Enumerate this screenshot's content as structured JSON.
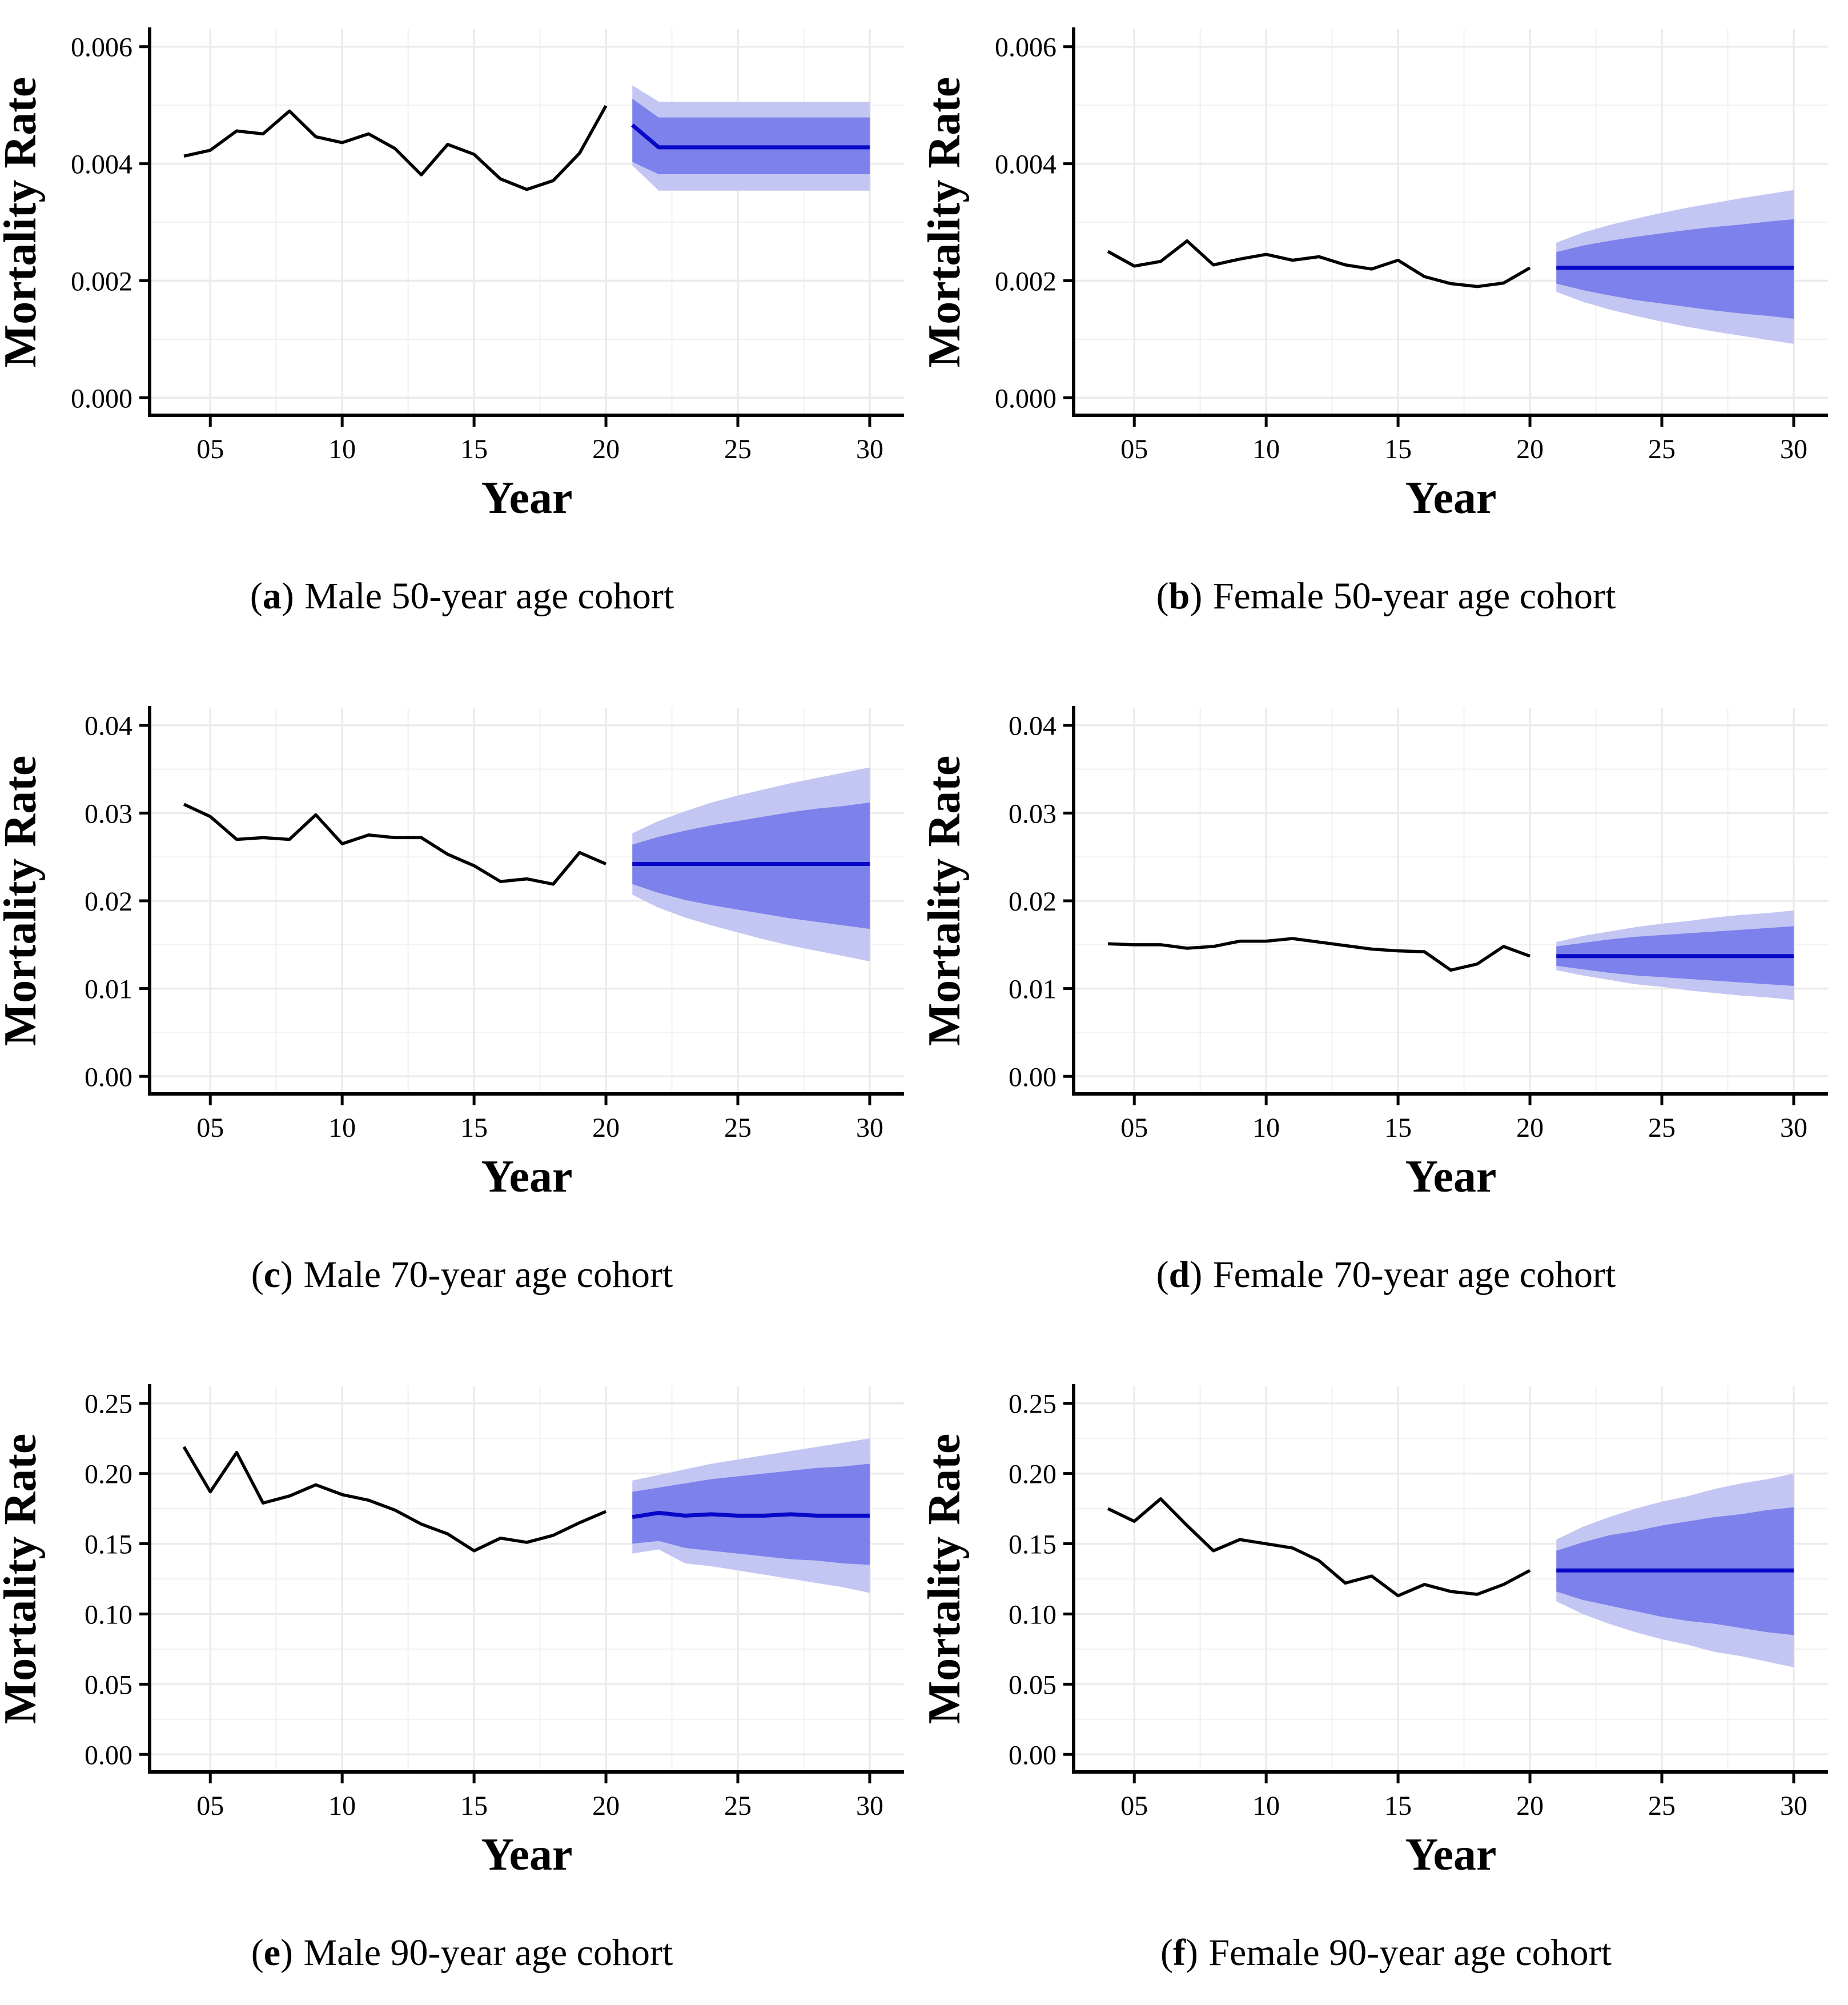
{
  "styles": {
    "background": "#ffffff",
    "historical_line": "#000000",
    "forecast_line": "#0808c8",
    "inner_band": "#7c81eb",
    "outer_band": "#c3c6f3",
    "grid_major": "#ebebeb",
    "grid_minor": "#f2f2f2",
    "axis_color": "#000000"
  },
  "caption_format": {
    "open": "(",
    "close": ")"
  },
  "axis": {
    "x_label": "Year",
    "y_label": "Mortality Rate",
    "x_tick_labels": [
      "05",
      "10",
      "15",
      "20",
      "25",
      "30"
    ],
    "x_tick_years": [
      5,
      10,
      15,
      20,
      25,
      30
    ],
    "x_minor_years": [
      7.5,
      12.5,
      17.5,
      22.5,
      27.5
    ],
    "x_range": [
      2.7,
      31.3
    ],
    "grid": true,
    "legend": "none"
  },
  "chart_data": [
    {
      "type": "line",
      "id": "a",
      "caption_letter": "a",
      "caption_text": "Male 50-year age cohort",
      "xlabel": "Year",
      "ylabel": "Mortality Rate",
      "y_min": -0.0003,
      "y_max": 0.0063,
      "y_tick_values": [
        0.0,
        0.002,
        0.004,
        0.006
      ],
      "y_tick_labels": [
        "0.000",
        "0.002",
        "0.004",
        "0.006"
      ],
      "y_minor_values": [
        0.001,
        0.003,
        0.005
      ],
      "hist_years": [
        4,
        5,
        6,
        7,
        8,
        9,
        10,
        11,
        12,
        13,
        14,
        15,
        16,
        17,
        18,
        19,
        20
      ],
      "hist": [
        0.00413,
        0.00423,
        0.00456,
        0.00451,
        0.0049,
        0.00446,
        0.00436,
        0.00451,
        0.00426,
        0.00381,
        0.00433,
        0.00416,
        0.00374,
        0.00356,
        0.00371,
        0.00418,
        0.00499
      ],
      "forecast_years": [
        21,
        22,
        23,
        24,
        25,
        26,
        27,
        28,
        29,
        30
      ],
      "forecast_median": [
        0.00466,
        0.00428,
        0.00428,
        0.00428,
        0.00428,
        0.00428,
        0.00428,
        0.00428,
        0.00428,
        0.00428
      ],
      "inner_upper": [
        0.00511,
        0.00479,
        0.00479,
        0.00479,
        0.00479,
        0.00479,
        0.00479,
        0.00479,
        0.00479,
        0.00479
      ],
      "inner_lower": [
        0.00403,
        0.00382,
        0.00382,
        0.00382,
        0.00382,
        0.00382,
        0.00382,
        0.00382,
        0.00382,
        0.00382
      ],
      "outer_upper": [
        0.00534,
        0.00506,
        0.00506,
        0.00506,
        0.00506,
        0.00506,
        0.00506,
        0.00506,
        0.00506,
        0.00506
      ],
      "outer_lower": [
        0.00397,
        0.00354,
        0.00354,
        0.00354,
        0.00354,
        0.00354,
        0.00354,
        0.00354,
        0.00354,
        0.00354
      ]
    },
    {
      "type": "line",
      "id": "b",
      "caption_letter": "b",
      "caption_text": "Female 50-year age cohort",
      "xlabel": "Year",
      "ylabel": "Mortality Rate",
      "y_min": -0.0003,
      "y_max": 0.0063,
      "y_tick_values": [
        0.0,
        0.002,
        0.004,
        0.006
      ],
      "y_tick_labels": [
        "0.000",
        "0.002",
        "0.004",
        "0.006"
      ],
      "y_minor_values": [
        0.001,
        0.003,
        0.005
      ],
      "hist_years": [
        4,
        5,
        6,
        7,
        8,
        9,
        10,
        11,
        12,
        13,
        14,
        15,
        16,
        17,
        18,
        19,
        20
      ],
      "hist": [
        0.0025,
        0.00225,
        0.00233,
        0.00268,
        0.00227,
        0.00237,
        0.00245,
        0.00235,
        0.00241,
        0.00227,
        0.0022,
        0.00235,
        0.00207,
        0.00195,
        0.0019,
        0.00196,
        0.00222
      ],
      "forecast_years": [
        21,
        22,
        23,
        24,
        25,
        26,
        27,
        28,
        29,
        30
      ],
      "forecast_median": [
        0.00222,
        0.00222,
        0.00222,
        0.00222,
        0.00222,
        0.00222,
        0.00222,
        0.00222,
        0.00222,
        0.00222
      ],
      "inner_upper": [
        0.00249,
        0.0026,
        0.00268,
        0.00275,
        0.00281,
        0.00287,
        0.00292,
        0.00296,
        0.00301,
        0.00305
      ],
      "inner_lower": [
        0.00195,
        0.00184,
        0.00175,
        0.00167,
        0.00161,
        0.00155,
        0.00149,
        0.00144,
        0.0014,
        0.00135
      ],
      "outer_upper": [
        0.00265,
        0.00282,
        0.00295,
        0.00306,
        0.00316,
        0.00325,
        0.00333,
        0.00341,
        0.00348,
        0.00355
      ],
      "outer_lower": [
        0.00181,
        0.00164,
        0.00151,
        0.0014,
        0.0013,
        0.00121,
        0.00113,
        0.00106,
        0.00099,
        0.00092
      ]
    },
    {
      "type": "line",
      "id": "c",
      "caption_letter": "c",
      "caption_text": "Male 70-year age cohort",
      "xlabel": "Year",
      "ylabel": "Mortality Rate",
      "y_min": -0.002,
      "y_max": 0.042,
      "y_tick_values": [
        0.0,
        0.01,
        0.02,
        0.03,
        0.04
      ],
      "y_tick_labels": [
        "0.00",
        "0.01",
        "0.02",
        "0.03",
        "0.04"
      ],
      "y_minor_values": [
        0.005,
        0.015,
        0.025,
        0.035
      ],
      "hist_years": [
        4,
        5,
        6,
        7,
        8,
        9,
        10,
        11,
        12,
        13,
        14,
        15,
        16,
        17,
        18,
        19,
        20
      ],
      "hist": [
        0.031,
        0.0296,
        0.027,
        0.0272,
        0.027,
        0.0298,
        0.0265,
        0.0275,
        0.0272,
        0.0272,
        0.0253,
        0.024,
        0.0222,
        0.0225,
        0.0219,
        0.0255,
        0.0242
      ],
      "forecast_years": [
        21,
        22,
        23,
        24,
        25,
        26,
        27,
        28,
        29,
        30
      ],
      "forecast_median": [
        0.0242,
        0.0242,
        0.0242,
        0.0242,
        0.0242,
        0.0242,
        0.0242,
        0.0242,
        0.0242,
        0.0242
      ],
      "inner_upper": [
        0.0264,
        0.0273,
        0.028,
        0.0286,
        0.0291,
        0.0296,
        0.0301,
        0.0305,
        0.0308,
        0.0312
      ],
      "inner_lower": [
        0.0219,
        0.0209,
        0.0201,
        0.0195,
        0.019,
        0.0185,
        0.018,
        0.0176,
        0.0172,
        0.0168
      ],
      "outer_upper": [
        0.0277,
        0.0291,
        0.0302,
        0.0312,
        0.032,
        0.0327,
        0.0334,
        0.034,
        0.0346,
        0.0352
      ],
      "outer_lower": [
        0.0207,
        0.0192,
        0.0181,
        0.0172,
        0.0164,
        0.0156,
        0.0149,
        0.0143,
        0.0137,
        0.0131
      ]
    },
    {
      "type": "line",
      "id": "d",
      "caption_letter": "d",
      "caption_text": "Female 70-year age cohort",
      "xlabel": "Year",
      "ylabel": "Mortality Rate",
      "y_min": -0.002,
      "y_max": 0.042,
      "y_tick_values": [
        0.0,
        0.01,
        0.02,
        0.03,
        0.04
      ],
      "y_tick_labels": [
        "0.00",
        "0.01",
        "0.02",
        "0.03",
        "0.04"
      ],
      "y_minor_values": [
        0.005,
        0.015,
        0.025,
        0.035
      ],
      "hist_years": [
        4,
        5,
        6,
        7,
        8,
        9,
        10,
        11,
        12,
        13,
        14,
        15,
        16,
        17,
        18,
        19,
        20
      ],
      "hist": [
        0.0151,
        0.015,
        0.015,
        0.0146,
        0.0148,
        0.0154,
        0.0154,
        0.0157,
        0.0153,
        0.0149,
        0.0145,
        0.0143,
        0.0142,
        0.0121,
        0.0128,
        0.0148,
        0.0137
      ],
      "forecast_years": [
        21,
        22,
        23,
        24,
        25,
        26,
        27,
        28,
        29,
        30
      ],
      "forecast_median": [
        0.0137,
        0.0137,
        0.0137,
        0.0137,
        0.0137,
        0.0137,
        0.0137,
        0.0137,
        0.0137,
        0.0137
      ],
      "inner_upper": [
        0.0148,
        0.0152,
        0.0156,
        0.0159,
        0.0161,
        0.0163,
        0.0165,
        0.0167,
        0.0169,
        0.0171
      ],
      "inner_lower": [
        0.0126,
        0.0122,
        0.0118,
        0.0115,
        0.0113,
        0.0111,
        0.0109,
        0.0107,
        0.0105,
        0.0103
      ],
      "outer_upper": [
        0.0153,
        0.016,
        0.0165,
        0.017,
        0.0174,
        0.0177,
        0.0181,
        0.0184,
        0.0186,
        0.0189
      ],
      "outer_lower": [
        0.0121,
        0.0115,
        0.011,
        0.0105,
        0.0102,
        0.0098,
        0.0095,
        0.0092,
        0.009,
        0.0087
      ]
    },
    {
      "type": "line",
      "id": "e",
      "caption_letter": "e",
      "caption_text": "Male 90-year age cohort",
      "xlabel": "Year",
      "ylabel": "Mortality Rate",
      "y_min": -0.0125,
      "y_max": 0.2625,
      "y_tick_values": [
        0.0,
        0.05,
        0.1,
        0.15,
        0.2,
        0.25
      ],
      "y_tick_labels": [
        "0.00",
        "0.05",
        "0.10",
        "0.15",
        "0.20",
        "0.25"
      ],
      "y_minor_values": [
        0.025,
        0.075,
        0.125,
        0.175,
        0.225
      ],
      "hist_years": [
        4,
        5,
        6,
        7,
        8,
        9,
        10,
        11,
        12,
        13,
        14,
        15,
        16,
        17,
        18,
        19,
        20
      ],
      "hist": [
        0.219,
        0.187,
        0.215,
        0.179,
        0.184,
        0.192,
        0.185,
        0.181,
        0.174,
        0.164,
        0.157,
        0.145,
        0.154,
        0.151,
        0.156,
        0.165,
        0.173
      ],
      "forecast_years": [
        21,
        22,
        23,
        24,
        25,
        26,
        27,
        28,
        29,
        30
      ],
      "forecast_median": [
        0.169,
        0.172,
        0.17,
        0.171,
        0.17,
        0.17,
        0.171,
        0.17,
        0.17,
        0.17
      ],
      "inner_upper": [
        0.187,
        0.19,
        0.193,
        0.196,
        0.198,
        0.2,
        0.202,
        0.204,
        0.205,
        0.207
      ],
      "inner_lower": [
        0.15,
        0.152,
        0.147,
        0.145,
        0.143,
        0.141,
        0.139,
        0.138,
        0.136,
        0.135
      ],
      "outer_upper": [
        0.195,
        0.199,
        0.203,
        0.207,
        0.21,
        0.213,
        0.216,
        0.219,
        0.222,
        0.225
      ],
      "outer_lower": [
        0.143,
        0.146,
        0.136,
        0.134,
        0.131,
        0.128,
        0.125,
        0.122,
        0.119,
        0.115
      ]
    },
    {
      "type": "line",
      "id": "f",
      "caption_letter": "f",
      "caption_text": "Female 90-year age cohort",
      "xlabel": "Year",
      "ylabel": "Mortality Rate",
      "y_min": -0.0125,
      "y_max": 0.2625,
      "y_tick_values": [
        0.0,
        0.05,
        0.1,
        0.15,
        0.2,
        0.25
      ],
      "y_tick_labels": [
        "0.00",
        "0.05",
        "0.10",
        "0.15",
        "0.20",
        "0.25"
      ],
      "y_minor_values": [
        0.025,
        0.075,
        0.125,
        0.175,
        0.225
      ],
      "hist_years": [
        4,
        5,
        6,
        7,
        8,
        9,
        10,
        11,
        12,
        13,
        14,
        15,
        16,
        17,
        18,
        19,
        20
      ],
      "hist": [
        0.175,
        0.166,
        0.182,
        0.163,
        0.145,
        0.153,
        0.15,
        0.147,
        0.138,
        0.122,
        0.127,
        0.113,
        0.121,
        0.116,
        0.114,
        0.121,
        0.131
      ],
      "forecast_years": [
        21,
        22,
        23,
        24,
        25,
        26,
        27,
        28,
        29,
        30
      ],
      "forecast_median": [
        0.131,
        0.131,
        0.131,
        0.131,
        0.131,
        0.131,
        0.131,
        0.131,
        0.131,
        0.131
      ],
      "inner_upper": [
        0.145,
        0.151,
        0.156,
        0.159,
        0.163,
        0.166,
        0.169,
        0.171,
        0.174,
        0.176
      ],
      "inner_lower": [
        0.116,
        0.11,
        0.106,
        0.102,
        0.098,
        0.095,
        0.093,
        0.09,
        0.087,
        0.085
      ],
      "outer_upper": [
        0.153,
        0.162,
        0.169,
        0.175,
        0.18,
        0.184,
        0.189,
        0.193,
        0.196,
        0.2
      ],
      "outer_lower": [
        0.109,
        0.1,
        0.093,
        0.087,
        0.082,
        0.078,
        0.073,
        0.07,
        0.066,
        0.062
      ]
    }
  ]
}
